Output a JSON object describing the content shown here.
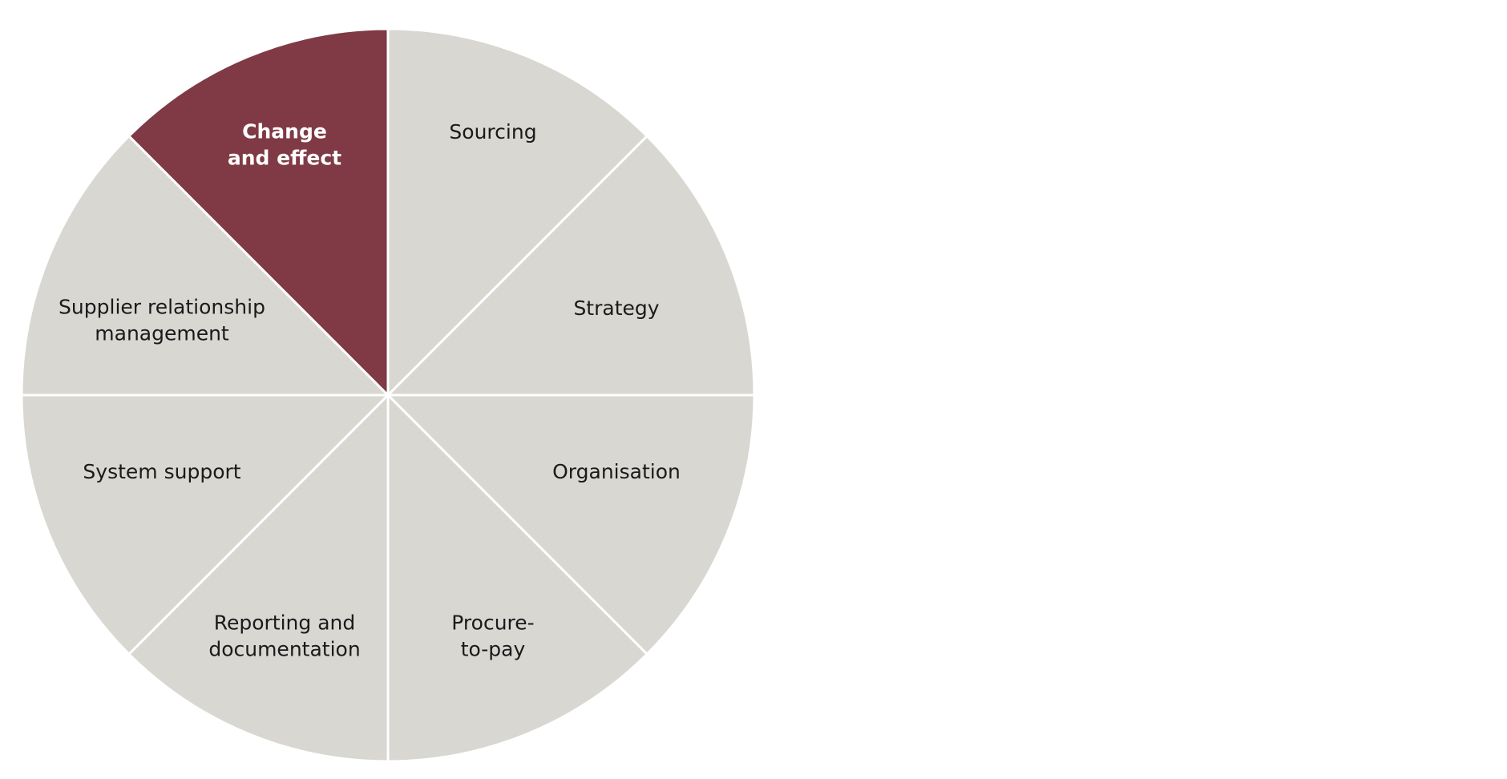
{
  "nodes": [
    {
      "lines": [
        "Sourcing"
      ],
      "highlighted": false
    },
    {
      "lines": [
        "Strategy"
      ],
      "highlighted": false
    },
    {
      "lines": [
        "Organisation"
      ],
      "highlighted": false
    },
    {
      "lines": [
        "Procure-",
        "to-pay"
      ],
      "highlighted": false
    },
    {
      "lines": [
        "Reporting and",
        "documentation"
      ],
      "highlighted": false
    },
    {
      "lines": [
        "System support"
      ],
      "highlighted": false
    },
    {
      "lines": [
        "Supplier relationship",
        "management"
      ],
      "highlighted": false
    },
    {
      "lines": [
        "Change",
        "and effect"
      ],
      "highlighted": true
    }
  ]
}
